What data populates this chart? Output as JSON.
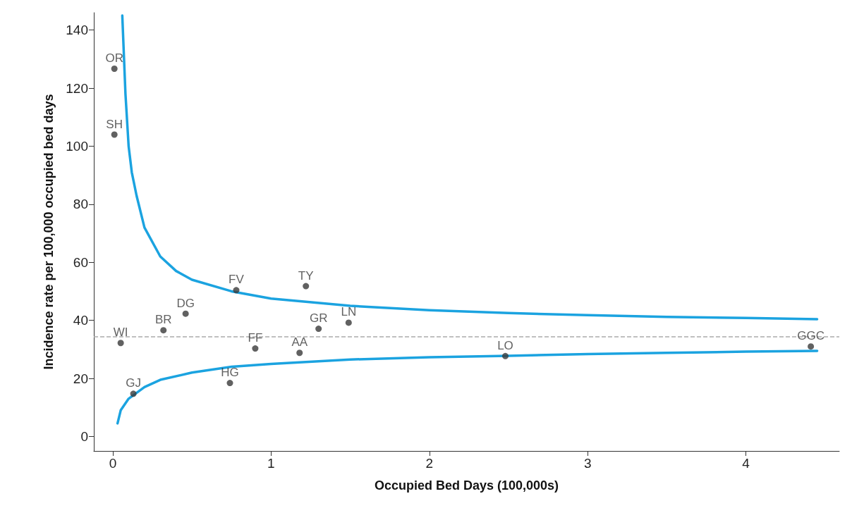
{
  "chart_data": {
    "type": "line",
    "xlabel": "Occupied Bed Days (100,000s)",
    "ylabel": "Incidence rate per 100,000 occupied bed days",
    "xlim": [
      -0.12,
      4.59
    ],
    "xticks": [
      0,
      1,
      2,
      3,
      4
    ],
    "ylim": [
      -5,
      146
    ],
    "yticks": [
      0,
      20,
      40,
      60,
      80,
      100,
      120,
      140
    ],
    "grid": false,
    "legend": false,
    "marker": "none",
    "series": [
      {
        "color": "#1ba3e0",
        "x": [
          0.06,
          0.08,
          0.1,
          0.12,
          0.15,
          0.2,
          0.3,
          0.4,
          0.5,
          0.75,
          1,
          1.5,
          2,
          2.5,
          3,
          3.5,
          4,
          4.45
        ],
        "values": [
          145,
          118,
          100,
          91,
          83,
          72,
          62,
          57,
          54,
          50,
          47.5,
          45,
          43.5,
          42.5,
          41.8,
          41.2,
          40.8,
          40.4
        ]
      },
      {
        "color": "#1ba3e0",
        "x": [
          0.03,
          0.05,
          0.1,
          0.2,
          0.3,
          0.5,
          0.75,
          1,
          1.5,
          2,
          2.5,
          3,
          3.5,
          4,
          4.45
        ],
        "values": [
          4.5,
          9,
          13,
          17,
          19.5,
          22,
          24,
          25,
          26.5,
          27.3,
          27.8,
          28.4,
          28.8,
          29.2,
          29.5
        ]
      },
      {
        "type": "scatter",
        "marker": "circle",
        "name": "OR",
        "color": "#3a3a3a",
        "x": [
          0.01
        ],
        "values": [
          126.7
        ]
      },
      {
        "type": "scatter",
        "marker": "circle",
        "name": "SH",
        "color": "#3a3a3a",
        "x": [
          0.01
        ],
        "values": [
          104
        ]
      },
      {
        "type": "scatter",
        "marker": "circle",
        "name": "FV",
        "color": "#3a3a3a",
        "x": [
          0.78
        ],
        "values": [
          50.4
        ]
      },
      {
        "type": "scatter",
        "marker": "circle",
        "name": "TY",
        "color": "#3a3a3a",
        "x": [
          1.22
        ],
        "values": [
          51.8
        ]
      },
      {
        "type": "scatter",
        "marker": "circle",
        "name": "DG",
        "color": "#3a3a3a",
        "x": [
          0.46
        ],
        "values": [
          42.3
        ]
      },
      {
        "type": "scatter",
        "marker": "circle",
        "name": "BR",
        "color": "#3a3a3a",
        "x": [
          0.32
        ],
        "values": [
          36.6
        ]
      },
      {
        "type": "scatter",
        "marker": "circle",
        "name": "GR",
        "color": "#3a3a3a",
        "x": [
          1.3
        ],
        "values": [
          37.1
        ]
      },
      {
        "type": "scatter",
        "marker": "circle",
        "name": "LN",
        "color": "#3a3a3a",
        "x": [
          1.49
        ],
        "values": [
          39.2
        ]
      },
      {
        "type": "scatter",
        "marker": "circle",
        "name": "WI",
        "color": "#3a3a3a",
        "x": [
          0.05
        ],
        "values": [
          32.2
        ]
      },
      {
        "type": "scatter",
        "marker": "circle",
        "name": "FF",
        "color": "#3a3a3a",
        "x": [
          0.9
        ],
        "values": [
          30.3
        ]
      },
      {
        "type": "scatter",
        "marker": "circle",
        "name": "AA",
        "color": "#3a3a3a",
        "x": [
          1.18
        ],
        "values": [
          28.8
        ]
      },
      {
        "type": "scatter",
        "marker": "circle",
        "name": "LO",
        "color": "#3a3a3a",
        "x": [
          2.48
        ],
        "values": [
          27.7
        ]
      },
      {
        "type": "scatter",
        "marker": "circle",
        "name": "GGC",
        "color": "#3a3a3a",
        "x": [
          4.41
        ],
        "values": [
          31
        ]
      },
      {
        "type": "scatter",
        "marker": "circle",
        "name": "HG",
        "color": "#3a3a3a",
        "x": [
          0.74
        ],
        "values": [
          18.4
        ]
      },
      {
        "type": "scatter",
        "marker": "circle",
        "name": "GJ",
        "color": "#3a3a3a",
        "x": [
          0.13
        ],
        "values": [
          14.7
        ]
      }
    ],
    "ref_lines": [
      {
        "axis": "y",
        "value": 34.5,
        "color": "#aaaaaa",
        "line_style": "dashed"
      }
    ]
  }
}
